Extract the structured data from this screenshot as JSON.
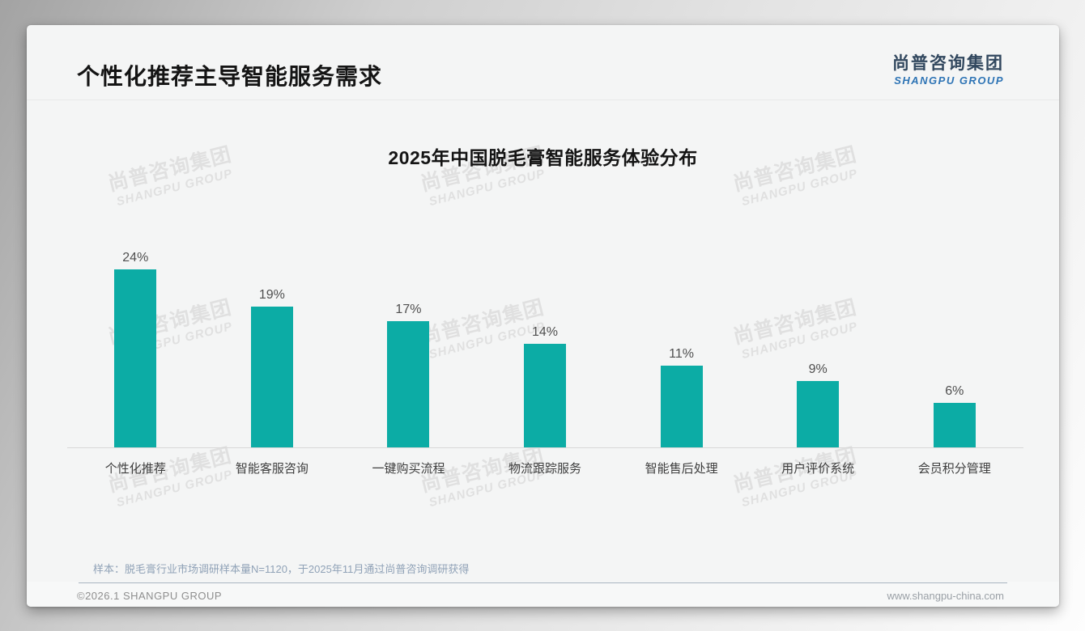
{
  "header": {
    "title": "个性化推荐主导智能服务需求",
    "logo": {
      "cn": "尚普咨询集团",
      "en": "SHANGPU GROUP"
    }
  },
  "chart_data": {
    "type": "bar",
    "title": "2025年中国脱毛膏智能服务体验分布",
    "categories": [
      "个性化推荐",
      "智能客服咨询",
      "一键购买流程",
      "物流跟踪服务",
      "智能售后处理",
      "用户评价系统",
      "会员积分管理"
    ],
    "values": [
      24,
      19,
      17,
      14,
      11,
      9,
      6
    ],
    "value_labels": [
      "24%",
      "19%",
      "17%",
      "14%",
      "11%",
      "9%",
      "6%"
    ],
    "xlabel": "",
    "ylabel": "",
    "ylim": [
      0,
      26
    ],
    "grid": false,
    "legend_position": "none",
    "bar_color": "#0caca5"
  },
  "watermark": {
    "line1": "尚普咨询集团",
    "line2": "SHANGPU GROUP"
  },
  "note": "样本：脱毛膏行业市场调研样本量N=1120，于2025年11月通过尚普咨询调研获得",
  "footer": {
    "copyright": "©2026.1 SHANGPU GROUP",
    "website": "www.shangpu-china.com"
  },
  "colors": {
    "bar": "#0caca5",
    "logo_cn": "#31475e",
    "logo_en": "#2e74b5",
    "note_text": "#90a2b7"
  }
}
